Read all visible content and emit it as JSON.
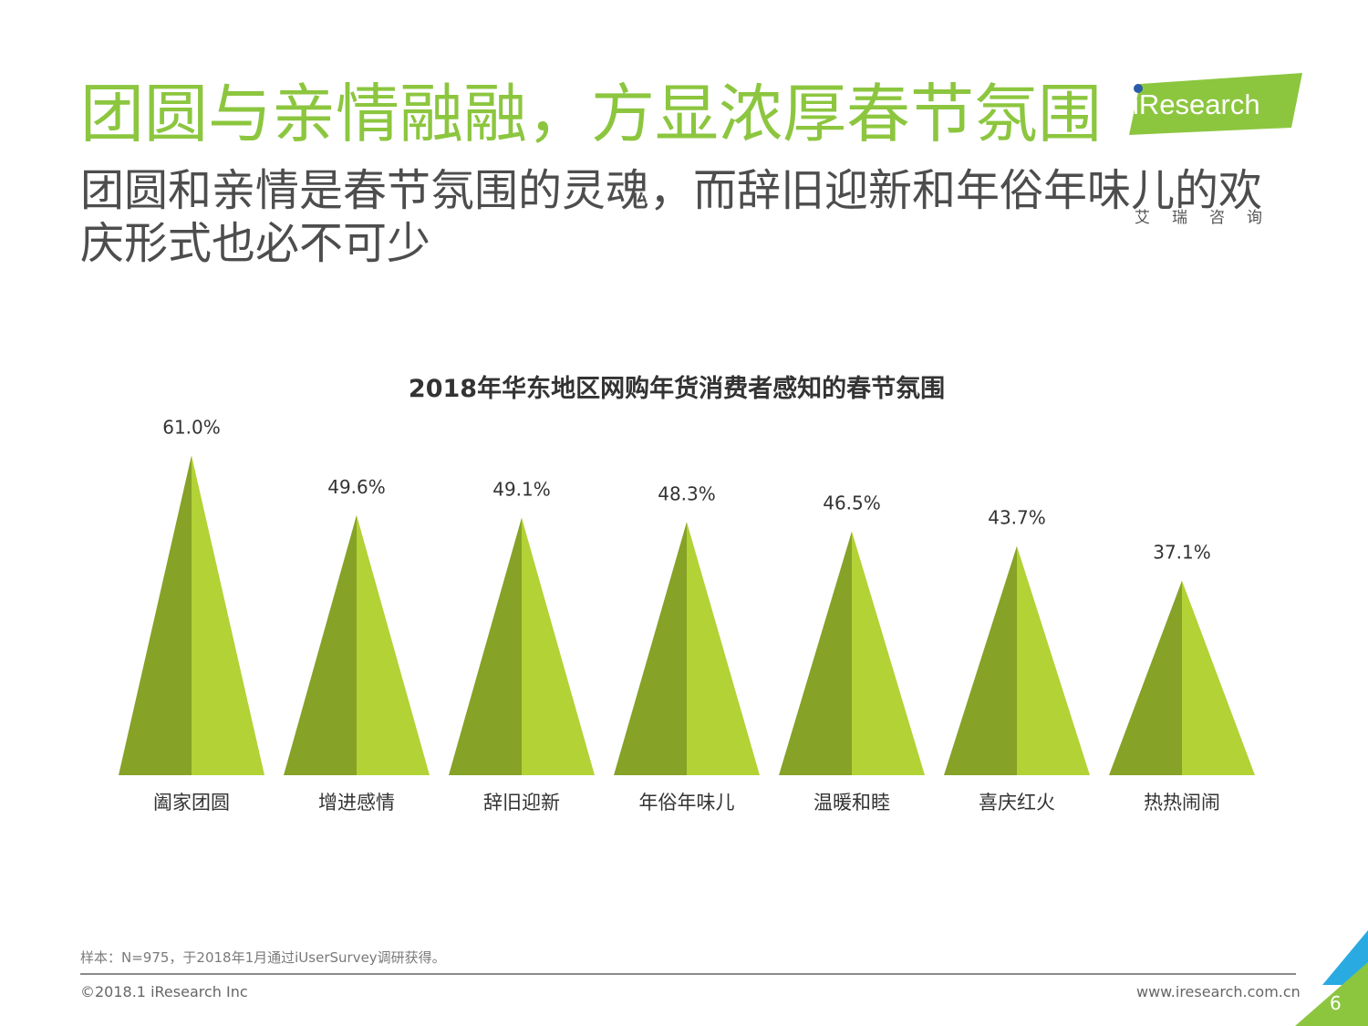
{
  "slide": {
    "title": "团圆与亲情融融，方显浓厚春节氛围",
    "subtitle": "团圆和亲情是春节氛围的灵魂，而辞旧迎新和年俗年味儿的欢庆形式也必不可少",
    "logo_text": "iResearch",
    "logo_cn": "艾瑞咨询",
    "footnote": "样本：N=975，于2018年1月通过iUserSurvey调研获得。",
    "copyright": "©2018.1 iResearch Inc",
    "website": "www.iresearch.com.cn",
    "page_number": "6"
  },
  "colors": {
    "accent": "#8cc63f",
    "shape_dark": "#86a227",
    "shape_light": "#b2d235",
    "logo_dot": "#2a5ba8"
  },
  "chart_data": {
    "type": "bar",
    "title": "2018年华东地区网购年货消费者感知的春节氛围",
    "categories": [
      "阖家团圆",
      "增进感情",
      "辞旧迎新",
      "年俗年味儿",
      "温暖和睦",
      "喜庆红火",
      "热热闹闹"
    ],
    "values": [
      61.0,
      49.6,
      49.1,
      48.3,
      46.5,
      43.7,
      37.1
    ],
    "value_labels": [
      "61.0%",
      "49.6%",
      "49.1%",
      "48.3%",
      "46.5%",
      "43.7%",
      "37.1%"
    ],
    "unit": "%",
    "bar_shape": "triangle",
    "grid": false,
    "legend": "none"
  }
}
